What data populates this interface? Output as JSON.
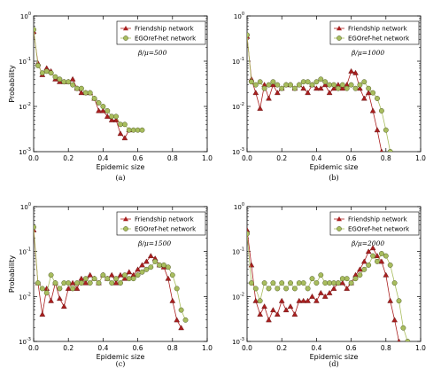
{
  "chart_data": [
    {
      "type": "line",
      "panel_label": "(a)",
      "annotation": "β/μ=500",
      "xlabel": "Epidemic size",
      "ylabel": "Probability",
      "xlim": [
        0,
        1
      ],
      "ylim": [
        0.001,
        1
      ],
      "yscale": "log",
      "x_ticks": [
        "0.0",
        "0.2",
        "0.4",
        "0.6",
        "0.8",
        "1.0"
      ],
      "y_ticks": [
        {
          "base": "10",
          "exp": "0"
        },
        {
          "base": "10",
          "exp": "-1"
        },
        {
          "base": "10",
          "exp": "-2"
        },
        {
          "base": "10",
          "exp": "-3"
        }
      ],
      "legend_position": "top-right",
      "series": [
        {
          "name": "Friendship network",
          "color": "#aa1f1f",
          "marker": "triangle",
          "x": [
            0,
            0.025,
            0.05,
            0.075,
            0.1,
            0.125,
            0.15,
            0.175,
            0.2,
            0.225,
            0.25,
            0.275,
            0.3,
            0.325,
            0.35,
            0.375,
            0.4,
            0.425,
            0.45,
            0.475,
            0.5,
            0.525,
            0.55
          ],
          "y": [
            0.45,
            0.09,
            0.05,
            0.07,
            0.06,
            0.04,
            0.035,
            0.035,
            0.035,
            0.04,
            0.025,
            0.02,
            0.02,
            0.02,
            0.015,
            0.008,
            0.008,
            0.006,
            0.005,
            0.005,
            0.0025,
            0.002,
            0.003
          ]
        },
        {
          "name": "EGOref-het network",
          "color": "#a8bd5e",
          "marker": "circle",
          "x": [
            0,
            0.025,
            0.05,
            0.075,
            0.1,
            0.125,
            0.15,
            0.175,
            0.2,
            0.225,
            0.25,
            0.275,
            0.3,
            0.325,
            0.35,
            0.375,
            0.4,
            0.425,
            0.45,
            0.475,
            0.5,
            0.525,
            0.55,
            0.575,
            0.6,
            0.625
          ],
          "y": [
            0.5,
            0.08,
            0.055,
            0.06,
            0.055,
            0.045,
            0.04,
            0.035,
            0.035,
            0.03,
            0.025,
            0.025,
            0.02,
            0.02,
            0.015,
            0.012,
            0.01,
            0.008,
            0.006,
            0.006,
            0.004,
            0.004,
            0.003,
            0.003,
            0.003,
            0.003
          ]
        }
      ]
    },
    {
      "type": "line",
      "panel_label": "(b)",
      "annotation": "β/μ=1000",
      "xlabel": "Epidemic size",
      "ylabel": "",
      "xlim": [
        0,
        1
      ],
      "ylim": [
        0.001,
        1
      ],
      "yscale": "log",
      "x_ticks": [
        "0.0",
        "0.2",
        "0.4",
        "0.6",
        "0.8",
        "1.0"
      ],
      "y_ticks": [
        {
          "base": "10",
          "exp": "0"
        },
        {
          "base": "10",
          "exp": "-1"
        },
        {
          "base": "10",
          "exp": "-2"
        },
        {
          "base": "10",
          "exp": "-3"
        }
      ],
      "legend_position": "top-right",
      "series": [
        {
          "name": "Friendship network",
          "color": "#aa1f1f",
          "marker": "triangle",
          "x": [
            0,
            0.025,
            0.05,
            0.075,
            0.1,
            0.125,
            0.15,
            0.175,
            0.2,
            0.225,
            0.25,
            0.275,
            0.3,
            0.325,
            0.35,
            0.375,
            0.4,
            0.425,
            0.45,
            0.475,
            0.5,
            0.525,
            0.55,
            0.575,
            0.6,
            0.625,
            0.65,
            0.675,
            0.7,
            0.725,
            0.75,
            0.775
          ],
          "y": [
            0.35,
            0.04,
            0.02,
            0.009,
            0.03,
            0.015,
            0.03,
            0.02,
            0.025,
            0.03,
            0.03,
            0.025,
            0.03,
            0.025,
            0.02,
            0.03,
            0.025,
            0.025,
            0.03,
            0.02,
            0.025,
            0.03,
            0.025,
            0.03,
            0.06,
            0.055,
            0.025,
            0.015,
            0.02,
            0.008,
            0.003,
            0.001
          ]
        },
        {
          "name": "EGOref-het network",
          "color": "#a8bd5e",
          "marker": "circle",
          "x": [
            0,
            0.025,
            0.05,
            0.075,
            0.1,
            0.125,
            0.15,
            0.175,
            0.2,
            0.225,
            0.25,
            0.275,
            0.3,
            0.325,
            0.35,
            0.375,
            0.4,
            0.425,
            0.45,
            0.475,
            0.5,
            0.525,
            0.55,
            0.575,
            0.6,
            0.625,
            0.65,
            0.675,
            0.7,
            0.725,
            0.75,
            0.775,
            0.8,
            0.825
          ],
          "y": [
            0.38,
            0.035,
            0.03,
            0.035,
            0.025,
            0.03,
            0.035,
            0.03,
            0.025,
            0.03,
            0.03,
            0.025,
            0.03,
            0.035,
            0.035,
            0.03,
            0.035,
            0.04,
            0.035,
            0.03,
            0.03,
            0.025,
            0.03,
            0.025,
            0.03,
            0.025,
            0.03,
            0.035,
            0.025,
            0.02,
            0.015,
            0.008,
            0.003,
            0.001
          ]
        }
      ]
    },
    {
      "type": "line",
      "panel_label": "(c)",
      "annotation": "β/μ=1500",
      "xlabel": "Epidemic size",
      "ylabel": "Probability",
      "xlim": [
        0,
        1
      ],
      "ylim": [
        0.001,
        1
      ],
      "yscale": "log",
      "x_ticks": [
        "0.0",
        "0.2",
        "0.4",
        "0.6",
        "0.8",
        "1.0"
      ],
      "y_ticks": [
        {
          "base": "10",
          "exp": "0"
        },
        {
          "base": "10",
          "exp": "-1"
        },
        {
          "base": "10",
          "exp": "-2"
        },
        {
          "base": "10",
          "exp": "-3"
        }
      ],
      "legend_position": "top-right",
      "series": [
        {
          "name": "Friendship network",
          "color": "#aa1f1f",
          "marker": "triangle",
          "x": [
            0,
            0.025,
            0.05,
            0.075,
            0.1,
            0.125,
            0.15,
            0.175,
            0.2,
            0.225,
            0.25,
            0.275,
            0.3,
            0.325,
            0.35,
            0.375,
            0.4,
            0.425,
            0.45,
            0.475,
            0.5,
            0.525,
            0.55,
            0.575,
            0.6,
            0.625,
            0.65,
            0.675,
            0.7,
            0.725,
            0.75,
            0.775,
            0.8,
            0.825,
            0.85
          ],
          "y": [
            0.3,
            0.02,
            0.004,
            0.015,
            0.008,
            0.02,
            0.009,
            0.006,
            0.015,
            0.02,
            0.015,
            0.025,
            0.02,
            0.03,
            0.025,
            0.02,
            0.03,
            0.025,
            0.03,
            0.02,
            0.03,
            0.025,
            0.035,
            0.03,
            0.04,
            0.05,
            0.06,
            0.08,
            0.07,
            0.05,
            0.045,
            0.025,
            0.008,
            0.003,
            0.002
          ]
        },
        {
          "name": "EGOref-het network",
          "color": "#a8bd5e",
          "marker": "circle",
          "x": [
            0,
            0.025,
            0.05,
            0.075,
            0.1,
            0.125,
            0.15,
            0.175,
            0.2,
            0.225,
            0.25,
            0.275,
            0.3,
            0.325,
            0.35,
            0.375,
            0.4,
            0.425,
            0.45,
            0.475,
            0.5,
            0.525,
            0.55,
            0.575,
            0.6,
            0.625,
            0.65,
            0.675,
            0.7,
            0.725,
            0.75,
            0.775,
            0.8,
            0.825,
            0.85,
            0.875
          ],
          "y": [
            0.35,
            0.02,
            0.015,
            0.012,
            0.03,
            0.02,
            0.015,
            0.02,
            0.02,
            0.015,
            0.02,
            0.02,
            0.025,
            0.02,
            0.025,
            0.02,
            0.03,
            0.025,
            0.02,
            0.025,
            0.02,
            0.03,
            0.025,
            0.025,
            0.03,
            0.035,
            0.04,
            0.045,
            0.06,
            0.05,
            0.05,
            0.045,
            0.03,
            0.015,
            0.005,
            0.003
          ]
        }
      ]
    },
    {
      "type": "line",
      "panel_label": "(d)",
      "annotation": "β/μ=2000",
      "xlabel": "Epidemic size",
      "ylabel": "",
      "xlim": [
        0,
        1
      ],
      "ylim": [
        0.001,
        1
      ],
      "yscale": "log",
      "x_ticks": [
        "0.0",
        "0.2",
        "0.4",
        "0.6",
        "0.8",
        "1.0"
      ],
      "y_ticks": [
        {
          "base": "10",
          "exp": "0"
        },
        {
          "base": "10",
          "exp": "-1"
        },
        {
          "base": "10",
          "exp": "-2"
        },
        {
          "base": "10",
          "exp": "-3"
        }
      ],
      "legend_position": "top-right",
      "series": [
        {
          "name": "Friendship network",
          "color": "#aa1f1f",
          "marker": "triangle",
          "x": [
            0,
            0.025,
            0.05,
            0.075,
            0.1,
            0.125,
            0.15,
            0.175,
            0.2,
            0.225,
            0.25,
            0.275,
            0.3,
            0.325,
            0.35,
            0.375,
            0.4,
            0.425,
            0.45,
            0.475,
            0.5,
            0.525,
            0.55,
            0.575,
            0.6,
            0.625,
            0.65,
            0.675,
            0.7,
            0.725,
            0.75,
            0.775,
            0.8,
            0.825,
            0.85,
            0.875
          ],
          "y": [
            0.3,
            0.05,
            0.008,
            0.004,
            0.006,
            0.003,
            0.005,
            0.004,
            0.008,
            0.005,
            0.006,
            0.004,
            0.008,
            0.008,
            0.008,
            0.01,
            0.008,
            0.012,
            0.01,
            0.012,
            0.015,
            0.02,
            0.02,
            0.015,
            0.02,
            0.03,
            0.04,
            0.06,
            0.1,
            0.12,
            0.08,
            0.06,
            0.03,
            0.008,
            0.003,
            0.001
          ]
        },
        {
          "name": "EGOref-het network",
          "color": "#a8bd5e",
          "marker": "circle",
          "x": [
            0,
            0.025,
            0.05,
            0.075,
            0.1,
            0.125,
            0.15,
            0.175,
            0.2,
            0.225,
            0.25,
            0.275,
            0.3,
            0.325,
            0.35,
            0.375,
            0.4,
            0.425,
            0.45,
            0.475,
            0.5,
            0.525,
            0.55,
            0.575,
            0.6,
            0.625,
            0.65,
            0.675,
            0.7,
            0.725,
            0.75,
            0.775,
            0.8,
            0.825,
            0.85,
            0.875,
            0.9,
            0.925
          ],
          "y": [
            0.25,
            0.02,
            0.015,
            0.008,
            0.02,
            0.015,
            0.02,
            0.015,
            0.02,
            0.015,
            0.02,
            0.015,
            0.02,
            0.02,
            0.015,
            0.025,
            0.02,
            0.03,
            0.02,
            0.02,
            0.02,
            0.02,
            0.025,
            0.025,
            0.02,
            0.025,
            0.03,
            0.04,
            0.05,
            0.08,
            0.06,
            0.09,
            0.08,
            0.05,
            0.02,
            0.008,
            0.002,
            0.001
          ]
        }
      ]
    }
  ]
}
